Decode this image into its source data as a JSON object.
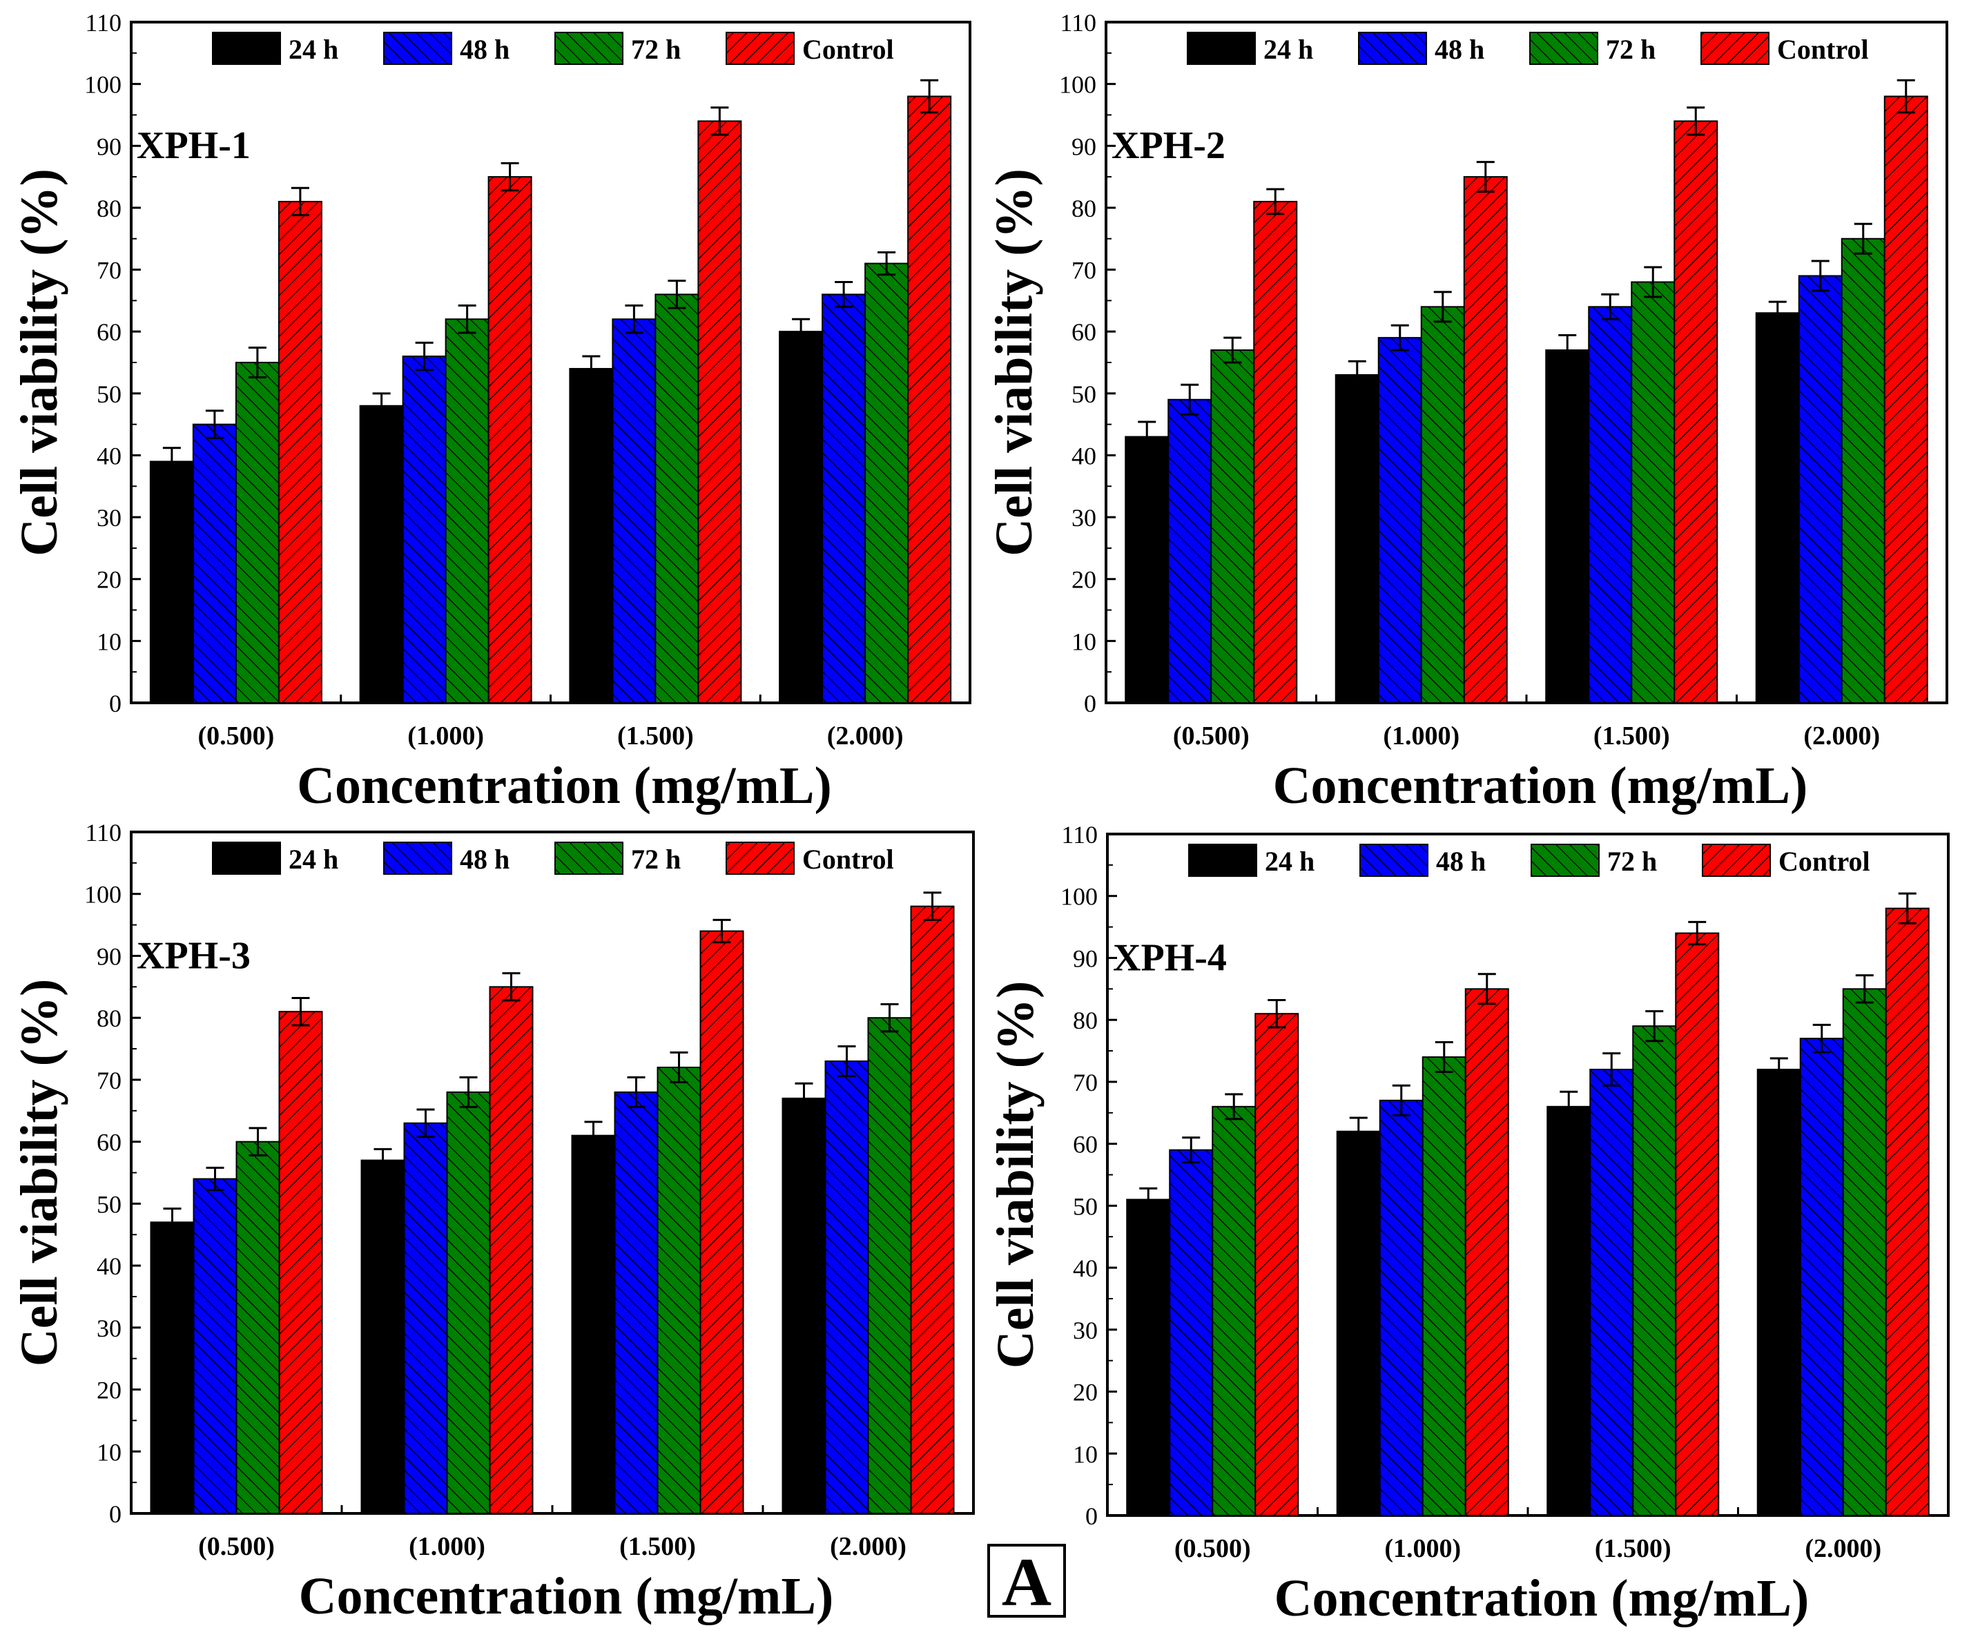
{
  "figure_label": "A",
  "legend_labels": [
    "24 h",
    "48 h",
    "72 h",
    "Control"
  ],
  "colors": {
    "24 h": "#000000",
    "48 h": "#0000ff",
    "72 h": "#008000",
    "Control": "#ff0000"
  },
  "chart_data": [
    {
      "type": "bar",
      "panel_label": "XPH-1",
      "xlabel": "Concentration (mg/mL)",
      "ylabel": "Cell viability (%)",
      "categories": [
        "(0.500)",
        "(1.000)",
        "(1.500)",
        "(2.000)"
      ],
      "ylim": [
        0,
        110
      ],
      "yticks": [
        0,
        10,
        20,
        30,
        40,
        50,
        60,
        70,
        80,
        90,
        100,
        110
      ],
      "legend_position": "top",
      "series": [
        {
          "name": "24 h",
          "values": [
            39,
            48,
            54,
            60
          ],
          "errors": [
            2.2,
            2.0,
            2.0,
            2.0
          ]
        },
        {
          "name": "48 h",
          "values": [
            45,
            56,
            62,
            66
          ],
          "errors": [
            2.2,
            2.2,
            2.2,
            2.0
          ]
        },
        {
          "name": "72 h",
          "values": [
            55,
            62,
            66,
            71
          ],
          "errors": [
            2.4,
            2.2,
            2.2,
            1.8
          ]
        },
        {
          "name": "Control",
          "values": [
            81,
            85,
            94,
            98
          ],
          "errors": [
            2.2,
            2.2,
            2.2,
            2.6
          ]
        }
      ]
    },
    {
      "type": "bar",
      "panel_label": "XPH-2",
      "xlabel": "Concentration (mg/mL)",
      "ylabel": "Cell viability (%)",
      "categories": [
        "(0.500)",
        "(1.000)",
        "(1.500)",
        "(2.000)"
      ],
      "ylim": [
        0,
        110
      ],
      "yticks": [
        0,
        10,
        20,
        30,
        40,
        50,
        60,
        70,
        80,
        90,
        100,
        110
      ],
      "legend_position": "top",
      "series": [
        {
          "name": "24 h",
          "values": [
            43,
            53,
            57,
            63
          ],
          "errors": [
            2.4,
            2.2,
            2.4,
            1.8
          ]
        },
        {
          "name": "48 h",
          "values": [
            49,
            59,
            64,
            69
          ],
          "errors": [
            2.4,
            2.0,
            2.0,
            2.4
          ]
        },
        {
          "name": "72 h",
          "values": [
            57,
            64,
            68,
            75
          ],
          "errors": [
            2.0,
            2.4,
            2.4,
            2.4
          ]
        },
        {
          "name": "Control",
          "values": [
            81,
            85,
            94,
            98
          ],
          "errors": [
            2.0,
            2.4,
            2.2,
            2.6
          ]
        }
      ]
    },
    {
      "type": "bar",
      "panel_label": "XPH-3",
      "xlabel": "Concentration (mg/mL)",
      "ylabel": "Cell viability (%)",
      "categories": [
        "(0.500)",
        "(1.000)",
        "(1.500)",
        "(2.000)"
      ],
      "ylim": [
        0,
        110
      ],
      "yticks": [
        0,
        10,
        20,
        30,
        40,
        50,
        60,
        70,
        80,
        90,
        100,
        110
      ],
      "legend_position": "top",
      "series": [
        {
          "name": "24 h",
          "values": [
            47,
            57,
            61,
            67
          ],
          "errors": [
            2.2,
            1.8,
            2.2,
            2.4
          ]
        },
        {
          "name": "48 h",
          "values": [
            54,
            63,
            68,
            73
          ],
          "errors": [
            1.8,
            2.2,
            2.4,
            2.4
          ]
        },
        {
          "name": "72 h",
          "values": [
            60,
            68,
            72,
            80
          ],
          "errors": [
            2.2,
            2.4,
            2.4,
            2.2
          ]
        },
        {
          "name": "Control",
          "values": [
            81,
            85,
            94,
            98
          ],
          "errors": [
            2.2,
            2.2,
            1.8,
            2.2
          ]
        }
      ]
    },
    {
      "type": "bar",
      "panel_label": "XPH-4",
      "xlabel": "Concentration (mg/mL)",
      "ylabel": "Cell viability (%)",
      "categories": [
        "(0.500)",
        "(1.000)",
        "(1.500)",
        "(2.000)"
      ],
      "ylim": [
        0,
        110
      ],
      "yticks": [
        0,
        10,
        20,
        30,
        40,
        50,
        60,
        70,
        80,
        90,
        100,
        110
      ],
      "legend_position": "top",
      "series": [
        {
          "name": "24 h",
          "values": [
            51,
            62,
            66,
            72
          ],
          "errors": [
            1.8,
            2.2,
            2.4,
            1.8
          ]
        },
        {
          "name": "48 h",
          "values": [
            59,
            67,
            72,
            77
          ],
          "errors": [
            2.0,
            2.4,
            2.6,
            2.2
          ]
        },
        {
          "name": "72 h",
          "values": [
            66,
            74,
            79,
            85
          ],
          "errors": [
            2.0,
            2.4,
            2.4,
            2.2
          ]
        },
        {
          "name": "Control",
          "values": [
            81,
            85,
            94,
            98
          ],
          "errors": [
            2.2,
            2.4,
            1.8,
            2.4
          ]
        }
      ]
    }
  ]
}
